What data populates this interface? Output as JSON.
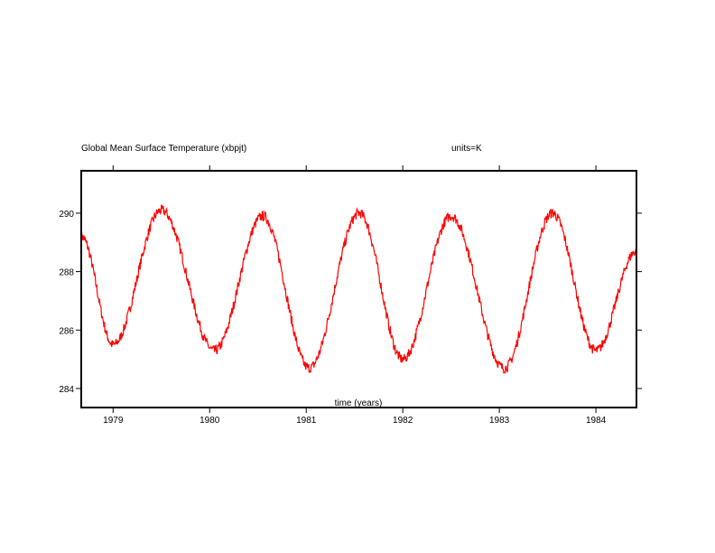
{
  "chart_data": {
    "type": "line",
    "title": "Global Mean Surface Temperature (xbpjt)",
    "units_label": "units=K",
    "xlabel": "time (years)",
    "ylabel": "",
    "xlim": [
      1978.67,
      1984.42
    ],
    "ylim": [
      283.35,
      291.45
    ],
    "x_ticks": [
      1979,
      1980,
      1981,
      1982,
      1983,
      1984
    ],
    "x_tick_labels": [
      "1979",
      "1980",
      "1981",
      "1982",
      "1983",
      "1984"
    ],
    "y_ticks": [
      284,
      286,
      288,
      290
    ],
    "y_tick_labels": [
      "284",
      "286",
      "288",
      "290"
    ],
    "grid": false,
    "series": [
      {
        "name": "Global Mean Surface Temperature",
        "color": "#ff0000",
        "x": [
          1978.67,
          1979.0,
          1979.5,
          1980.05,
          1980.55,
          1981.03,
          1981.55,
          1982.0,
          1982.5,
          1983.05,
          1983.55,
          1984.0,
          1984.42
        ],
        "y": [
          289.2,
          285.5,
          290.1,
          285.3,
          289.9,
          284.7,
          290.0,
          285.0,
          289.9,
          284.7,
          290.0,
          285.3,
          288.7
        ]
      }
    ]
  }
}
